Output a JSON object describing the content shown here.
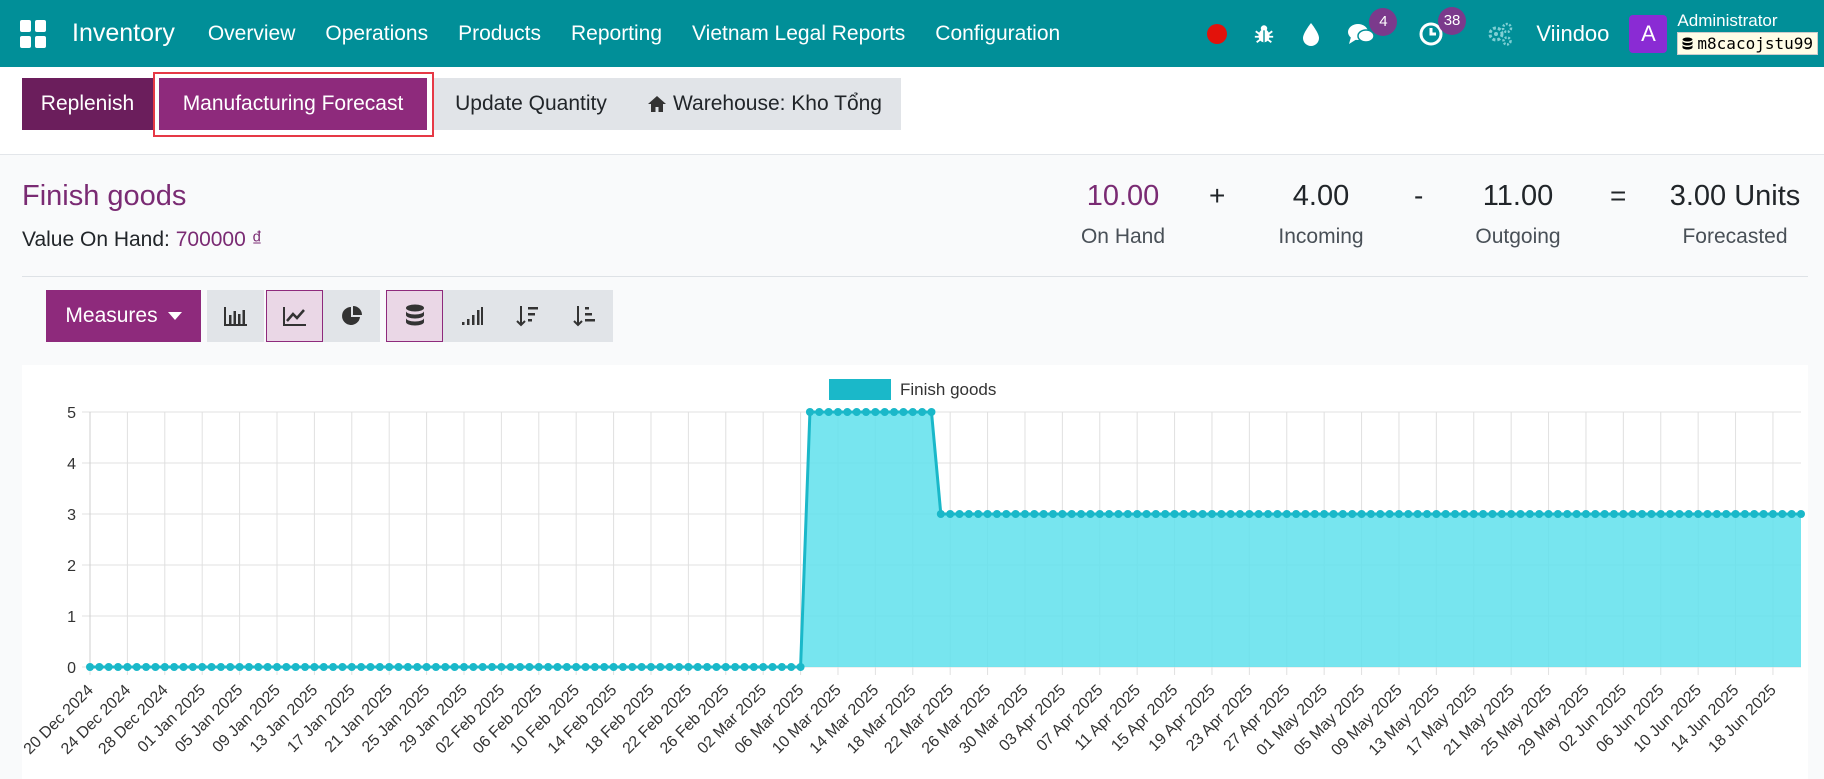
{
  "navbar": {
    "app_name": "Inventory",
    "menu": [
      "Overview",
      "Operations",
      "Products",
      "Reporting",
      "Vietnam Legal Reports",
      "Configuration"
    ],
    "messages_count": "4",
    "activities_count": "38",
    "company": "Viindoo",
    "avatar_letter": "A",
    "user_name": "Administrator",
    "db_name": "m8cacojstu99"
  },
  "control_panel": {
    "replenish_label": "Replenish",
    "manufacturing_forecast_label": "Manufacturing Forecast",
    "update_quantity_label": "Update Quantity",
    "warehouse_label": "Warehouse: Kho Tổng"
  },
  "summary": {
    "product_name": "Finish goods",
    "value_label": "Value On Hand:",
    "value_amount": "700000 ₫",
    "on_hand": "10.00",
    "on_hand_label": "On Hand",
    "plus": "+",
    "incoming": "4.00",
    "incoming_label": "Incoming",
    "minus": "-",
    "outgoing": "11.00",
    "outgoing_label": "Outgoing",
    "equals": "=",
    "forecasted": "3.00 Units",
    "forecasted_label": "Forecasted"
  },
  "toolbar": {
    "measures_label": "Measures"
  },
  "colors": {
    "navbar": "#018f98",
    "primary": "#8e2a7c",
    "series_line": "#1ab8c9",
    "series_fill": "#5fe0ec"
  },
  "chart_data": {
    "type": "area",
    "title": "",
    "legend": [
      "Finish goods"
    ],
    "legend_position": "top-center",
    "grid": true,
    "ylim": [
      0,
      5
    ],
    "yticks": [
      0,
      1,
      2,
      3,
      4,
      5
    ],
    "x_start": "20 Dec 2024",
    "x_end": "21 Jun 2025",
    "x_tick_labels": [
      "20 Dec 2024",
      "24 Dec 2024",
      "28 Dec 2024",
      "01 Jan 2025",
      "05 Jan 2025",
      "09 Jan 2025",
      "13 Jan 2025",
      "17 Jan 2025",
      "21 Jan 2025",
      "25 Jan 2025",
      "29 Jan 2025",
      "02 Feb 2025",
      "06 Feb 2025",
      "10 Feb 2025",
      "14 Feb 2025",
      "18 Feb 2025",
      "22 Feb 2025",
      "26 Feb 2025",
      "02 Mar 2025",
      "06 Mar 2025",
      "10 Mar 2025",
      "14 Mar 2025",
      "18 Mar 2025",
      "22 Mar 2025",
      "26 Mar 2025",
      "30 Mar 2025",
      "03 Apr 2025",
      "07 Apr 2025",
      "11 Apr 2025",
      "15 Apr 2025",
      "19 Apr 2025",
      "23 Apr 2025",
      "27 Apr 2025",
      "01 May 2025",
      "05 May 2025",
      "09 May 2025",
      "13 May 2025",
      "17 May 2025",
      "21 May 2025",
      "25 May 2025",
      "29 May 2025",
      "02 Jun 2025",
      "06 Jun 2025",
      "10 Jun 2025",
      "14 Jun 2025",
      "18 Jun 2025"
    ],
    "series": [
      {
        "name": "Finish goods",
        "segments": [
          {
            "from": "20 Dec 2024",
            "to": "06 Mar 2025",
            "value": 0
          },
          {
            "from": "07 Mar 2025",
            "to": "20 Mar 2025",
            "value": 5
          },
          {
            "from": "21 Mar 2025",
            "to": "21 Jun 2025",
            "value": 3
          }
        ]
      }
    ]
  }
}
